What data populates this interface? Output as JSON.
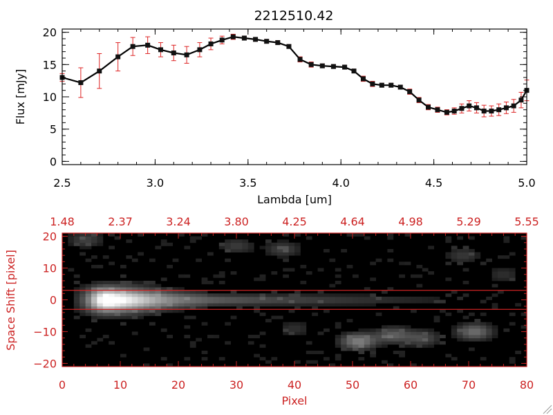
{
  "colors": {
    "axis_black": "#000000",
    "axis_red": "#cc2222",
    "errorbar": "#dd2222",
    "marker": "#111111",
    "image_bg": "#000000"
  },
  "chart_data": [
    {
      "type": "line",
      "title": "2212510.42",
      "xlabel": "Lambda [um]",
      "ylabel": "Flux [mJy]",
      "xlim": [
        2.5,
        5.0
      ],
      "ylim": [
        -0.5,
        20.5
      ],
      "x_ticks": [
        2.5,
        3.0,
        3.5,
        4.0,
        4.5,
        5.0
      ],
      "x_tick_labels": [
        "2.5",
        "3.0",
        "3.5",
        "4.0",
        "4.5",
        "5.0"
      ],
      "y_ticks": [
        0,
        5,
        10,
        15,
        20
      ],
      "y_tick_labels": [
        "0",
        "5",
        "10",
        "15",
        "20"
      ],
      "grid": false,
      "series": [
        {
          "x": [
            2.5,
            2.6,
            2.7,
            2.8,
            2.88,
            2.96,
            3.03,
            3.1,
            3.17,
            3.24,
            3.3,
            3.36,
            3.42,
            3.48,
            3.54,
            3.6,
            3.66,
            3.72,
            3.78,
            3.84,
            3.9,
            3.96,
            4.02,
            4.07,
            4.12,
            4.17,
            4.22,
            4.27,
            4.32,
            4.37,
            4.42,
            4.47,
            4.52,
            4.57,
            4.61,
            4.65,
            4.69,
            4.73,
            4.77,
            4.81,
            4.85,
            4.89,
            4.93,
            4.97,
            5.0
          ],
          "y": [
            13.0,
            12.2,
            14.0,
            16.2,
            17.8,
            18.0,
            17.3,
            16.8,
            16.5,
            17.3,
            18.2,
            18.8,
            19.3,
            19.1,
            18.9,
            18.6,
            18.4,
            17.8,
            15.8,
            15.0,
            14.8,
            14.7,
            14.6,
            14.0,
            12.8,
            12.0,
            11.8,
            11.8,
            11.5,
            10.8,
            9.5,
            8.4,
            8.0,
            7.6,
            7.8,
            8.2,
            8.6,
            8.3,
            7.8,
            7.8,
            8.0,
            8.3,
            8.6,
            9.5,
            11.0
          ],
          "err": [
            0.6,
            2.3,
            2.7,
            2.2,
            1.4,
            1.3,
            1.1,
            1.2,
            1.3,
            1.1,
            0.9,
            0.6,
            0.4,
            0.3,
            0.3,
            0.3,
            0.3,
            0.3,
            0.4,
            0.4,
            0.3,
            0.3,
            0.3,
            0.3,
            0.4,
            0.4,
            0.3,
            0.3,
            0.3,
            0.4,
            0.4,
            0.4,
            0.4,
            0.4,
            0.5,
            0.7,
            0.8,
            0.8,
            0.9,
            0.8,
            0.9,
            0.9,
            1.0,
            1.2,
            1.6
          ]
        }
      ]
    },
    {
      "type": "heatmap",
      "xlabel": "Pixel",
      "ylabel": "Space Shift [pixel]",
      "xlim": [
        0,
        80
      ],
      "ylim": [
        -21,
        21
      ],
      "x_ticks": [
        0,
        10,
        20,
        30,
        40,
        50,
        60,
        70,
        80
      ],
      "x_tick_labels": [
        "0",
        "10",
        "20",
        "30",
        "40",
        "50",
        "60",
        "70",
        "80"
      ],
      "y_ticks": [
        -20,
        -10,
        0,
        10,
        20
      ],
      "y_tick_labels": [
        "−20",
        "−10",
        "0",
        "10",
        "20"
      ],
      "top_axis_tick_labels": [
        "1.48",
        "2.37",
        "3.24",
        "3.80",
        "4.25",
        "4.64",
        "4.98",
        "5.29",
        "5.55"
      ],
      "horizontal_lines_y": [
        3,
        -3
      ],
      "trace": {
        "center_y": 0,
        "peak_x": 8,
        "end_x": 72
      },
      "blobs": [
        {
          "x": 51,
          "y": -13,
          "strength": 0.42
        },
        {
          "x": 57,
          "y": -11,
          "strength": 0.28
        },
        {
          "x": 62,
          "y": -12,
          "strength": 0.22
        },
        {
          "x": 71,
          "y": -10,
          "strength": 0.35
        },
        {
          "x": 38,
          "y": 16,
          "strength": 0.18
        },
        {
          "x": 30,
          "y": 17,
          "strength": 0.16
        },
        {
          "x": 4,
          "y": 19,
          "strength": 0.18
        },
        {
          "x": 69,
          "y": 14,
          "strength": 0.15
        },
        {
          "x": 76,
          "y": 8,
          "strength": 0.12
        },
        {
          "x": 40,
          "y": -9,
          "strength": 0.12
        }
      ]
    }
  ]
}
